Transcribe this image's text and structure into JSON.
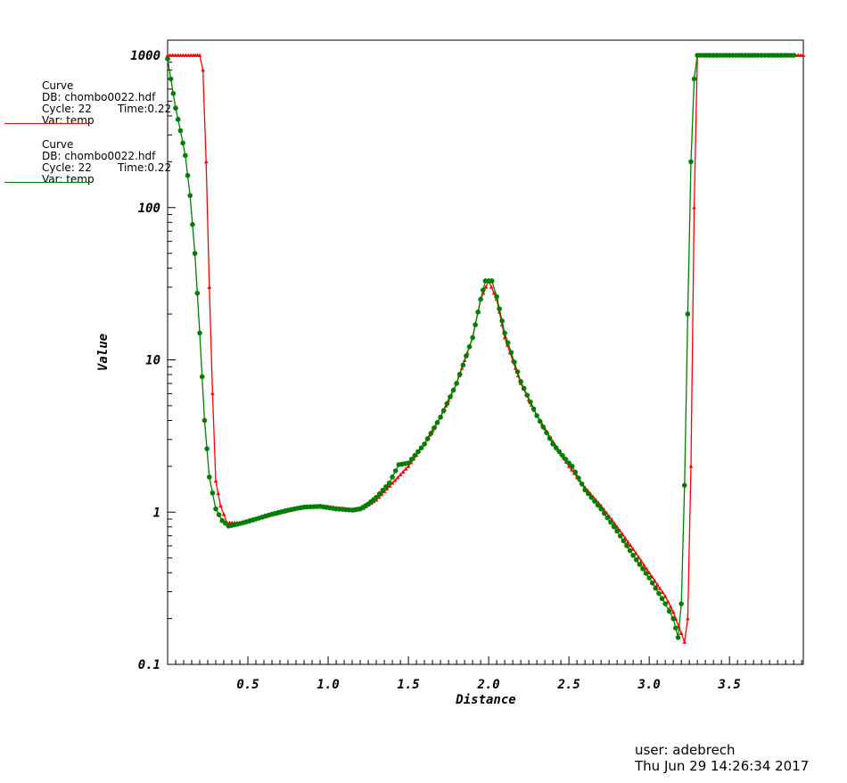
{
  "legend": [
    {
      "title": "Curve",
      "db": "DB: chombo0022.hdf",
      "cycle": "Cycle: 22",
      "time": "Time:0.22",
      "var": "Var: temp",
      "color": "#ff0000"
    },
    {
      "title": "Curve",
      "db": "DB: chombo0022.hdf",
      "cycle": "Cycle: 22",
      "time": "Time:0.22",
      "var": "Var: temp",
      "color": "#008000"
    }
  ],
  "footer": {
    "user": "user: adebrech",
    "timestamp": "Thu Jun 29 14:26:34 2017"
  },
  "chart_data": {
    "type": "line",
    "title": "",
    "xlabel": "Distance",
    "ylabel": "Value",
    "xlim": [
      0.0,
      3.96
    ],
    "ylim": [
      0.1,
      1000
    ],
    "yscale": "log",
    "x_ticks": [
      "0.5",
      "1.0",
      "1.5",
      "2.0",
      "2.5",
      "3.0",
      "3.5"
    ],
    "y_ticks": [
      "0.1",
      "1",
      "10",
      "100",
      "1000"
    ],
    "grid": false,
    "series": [
      {
        "color": "#ff0000",
        "marker": "triangle",
        "points": [
          [
            0.0,
            1000
          ],
          [
            0.08,
            1000
          ],
          [
            0.16,
            1000
          ],
          [
            0.2,
            1000
          ],
          [
            0.22,
            800
          ],
          [
            0.24,
            200
          ],
          [
            0.26,
            30
          ],
          [
            0.28,
            6
          ],
          [
            0.3,
            1.6
          ],
          [
            0.33,
            1.1
          ],
          [
            0.37,
            0.85
          ],
          [
            0.45,
            0.85
          ],
          [
            0.6,
            0.93
          ],
          [
            0.8,
            1.05
          ],
          [
            0.95,
            1.1
          ],
          [
            1.05,
            1.07
          ],
          [
            1.15,
            1.04
          ],
          [
            1.22,
            1.06
          ],
          [
            1.3,
            1.2
          ],
          [
            1.4,
            1.55
          ],
          [
            1.5,
            2.0
          ],
          [
            1.6,
            2.8
          ],
          [
            1.7,
            4.2
          ],
          [
            1.8,
            7.0
          ],
          [
            1.9,
            14
          ],
          [
            1.95,
            25
          ],
          [
            2.0,
            33
          ],
          [
            2.05,
            25
          ],
          [
            2.1,
            14
          ],
          [
            2.2,
            7.0
          ],
          [
            2.3,
            4.3
          ],
          [
            2.4,
            2.9
          ],
          [
            2.5,
            2.0
          ],
          [
            2.6,
            1.45
          ],
          [
            2.7,
            1.1
          ],
          [
            2.8,
            0.8
          ],
          [
            2.9,
            0.57
          ],
          [
            3.0,
            0.4
          ],
          [
            3.1,
            0.28
          ],
          [
            3.15,
            0.22
          ],
          [
            3.2,
            0.16
          ],
          [
            3.22,
            0.14
          ],
          [
            3.24,
            0.2
          ],
          [
            3.26,
            2
          ],
          [
            3.28,
            100
          ],
          [
            3.3,
            1000
          ],
          [
            3.4,
            1000
          ],
          [
            3.6,
            1000
          ],
          [
            3.8,
            1000
          ],
          [
            3.96,
            1000
          ]
        ]
      },
      {
        "color": "#008000",
        "marker": "dot",
        "points": [
          [
            0.0,
            950
          ],
          [
            0.02,
            700
          ],
          [
            0.05,
            450
          ],
          [
            0.08,
            320
          ],
          [
            0.11,
            220
          ],
          [
            0.14,
            120
          ],
          [
            0.17,
            50
          ],
          [
            0.2,
            15
          ],
          [
            0.23,
            4
          ],
          [
            0.26,
            1.7
          ],
          [
            0.3,
            1.05
          ],
          [
            0.34,
            0.88
          ],
          [
            0.38,
            0.81
          ],
          [
            0.45,
            0.84
          ],
          [
            0.55,
            0.9
          ],
          [
            0.65,
            0.97
          ],
          [
            0.75,
            1.03
          ],
          [
            0.85,
            1.08
          ],
          [
            0.95,
            1.09
          ],
          [
            1.05,
            1.05
          ],
          [
            1.15,
            1.03
          ],
          [
            1.2,
            1.05
          ],
          [
            1.25,
            1.13
          ],
          [
            1.3,
            1.25
          ],
          [
            1.38,
            1.55
          ],
          [
            1.44,
            2.05
          ],
          [
            1.5,
            2.1
          ],
          [
            1.6,
            2.8
          ],
          [
            1.7,
            4.2
          ],
          [
            1.8,
            7.0
          ],
          [
            1.9,
            14
          ],
          [
            1.95,
            25
          ],
          [
            1.98,
            33
          ],
          [
            2.02,
            33
          ],
          [
            2.05,
            26
          ],
          [
            2.1,
            15
          ],
          [
            2.2,
            7.2
          ],
          [
            2.3,
            4.3
          ],
          [
            2.4,
            2.8
          ],
          [
            2.5,
            2.1
          ],
          [
            2.52,
            2.0
          ],
          [
            2.6,
            1.4
          ],
          [
            2.7,
            1.05
          ],
          [
            2.8,
            0.75
          ],
          [
            2.9,
            0.52
          ],
          [
            3.0,
            0.37
          ],
          [
            3.1,
            0.25
          ],
          [
            3.15,
            0.2
          ],
          [
            3.18,
            0.15
          ],
          [
            3.2,
            0.25
          ],
          [
            3.22,
            1.5
          ],
          [
            3.24,
            20
          ],
          [
            3.26,
            200
          ],
          [
            3.28,
            700
          ],
          [
            3.3,
            1000
          ],
          [
            3.4,
            1000
          ],
          [
            3.6,
            1000
          ],
          [
            3.8,
            1000
          ],
          [
            3.9,
            1000
          ]
        ]
      }
    ]
  }
}
